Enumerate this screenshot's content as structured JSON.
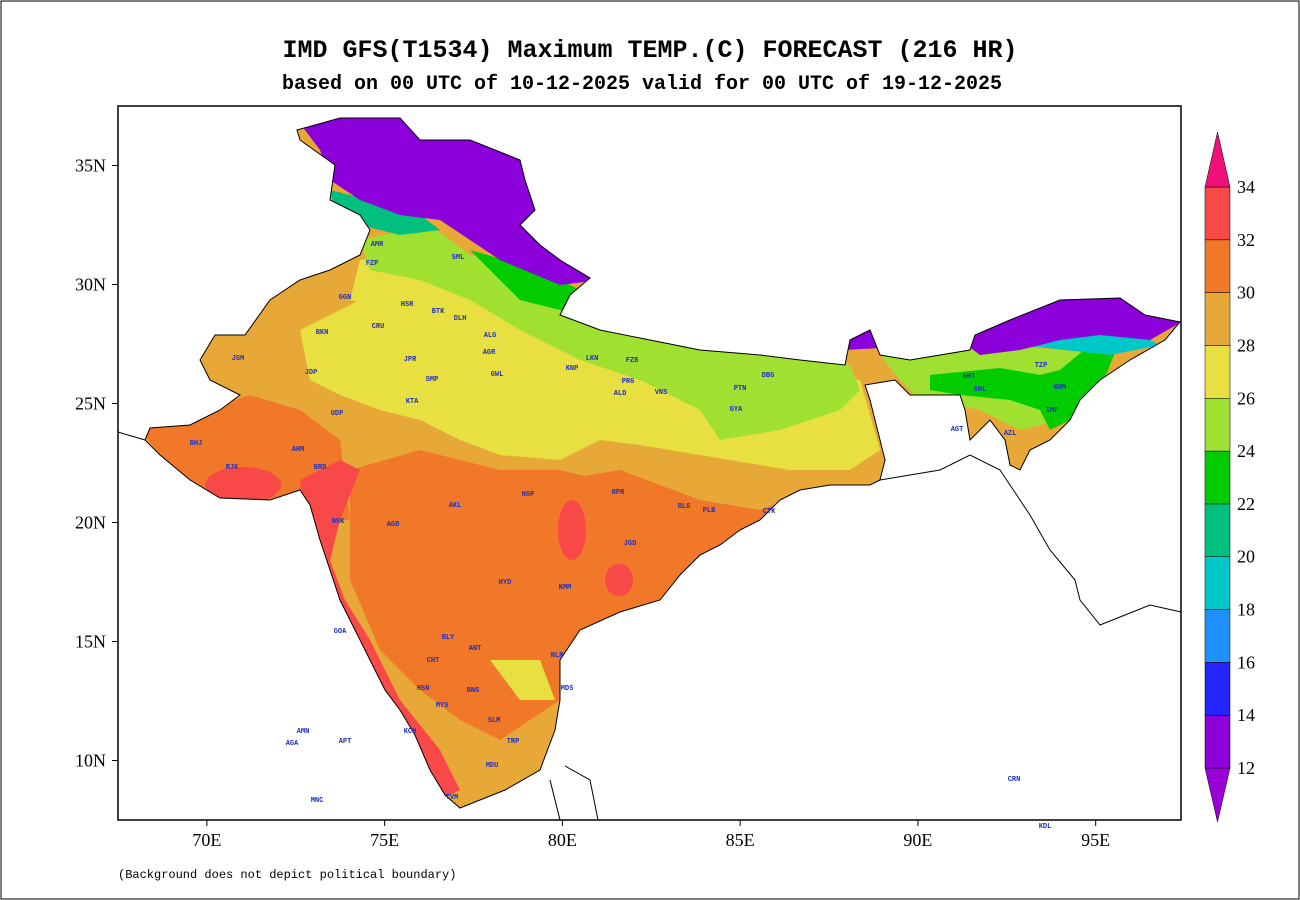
{
  "title": "IMD GFS(T1534) Maximum TEMP.(C) FORECAST (216 HR)",
  "subtitle": "based on 00 UTC of 10-12-2025 valid for 00 UTC of 19-12-2025",
  "footnote": "(Background does not depict political boundary)",
  "map": {
    "xlim": [
      67.5,
      97.4
    ],
    "ylim": [
      7.5,
      37.5
    ],
    "xticks": [
      {
        "value": 70,
        "label": "70E"
      },
      {
        "value": 75,
        "label": "75E"
      },
      {
        "value": 80,
        "label": "80E"
      },
      {
        "value": 85,
        "label": "85E"
      },
      {
        "value": 90,
        "label": "90E"
      },
      {
        "value": 95,
        "label": "95E"
      }
    ],
    "yticks": [
      {
        "value": 10,
        "label": "10N"
      },
      {
        "value": 15,
        "label": "15N"
      },
      {
        "value": 20,
        "label": "20N"
      },
      {
        "value": 25,
        "label": "25N"
      },
      {
        "value": 30,
        "label": "30N"
      },
      {
        "value": 35,
        "label": "35N"
      }
    ]
  },
  "colorbar": {
    "levels": [
      12,
      14,
      16,
      18,
      20,
      22,
      24,
      26,
      28,
      30,
      32,
      34
    ],
    "colors": [
      "#9b00d9",
      "#8c00dc",
      "#2424ff",
      "#1e90ff",
      "#00c8c8",
      "#00c080",
      "#00cc00",
      "#a0e030",
      "#e8e040",
      "#e8a838",
      "#f07828",
      "#f84848",
      "#f0107a"
    ]
  },
  "stations": [
    "AMR",
    "FZP",
    "GGN",
    "HSR",
    "BKN",
    "CRU",
    "SML",
    "BTK",
    "DLH",
    "ALG",
    "AGR",
    "JSM",
    "JDP",
    "JPR",
    "SMP",
    "KTA",
    "UDP",
    "GWL",
    "LKN",
    "FZB",
    "KNP",
    "PRG",
    "ALD",
    "VNS",
    "PTN",
    "DBG",
    "GYA",
    "BHJ",
    "AHM",
    "BRD",
    "RJK",
    "NSK",
    "AGD",
    "AKL",
    "NGP",
    "RPR",
    "BLG",
    "PLB",
    "CTK",
    "JGD",
    "HYD",
    "KMM",
    "GOA",
    "BLY",
    "ANT",
    "CHT",
    "HSN",
    "BNG",
    "MYS",
    "SLM",
    "MDS",
    "NLR",
    "TRP",
    "KCH",
    "MDU",
    "TVM",
    "GHT",
    "SHL",
    "TZP",
    "KHM",
    "IMP",
    "AZL",
    "AGT",
    "AMN",
    "AGA",
    "APT",
    "MNC",
    "CRN",
    "KDL"
  ]
}
